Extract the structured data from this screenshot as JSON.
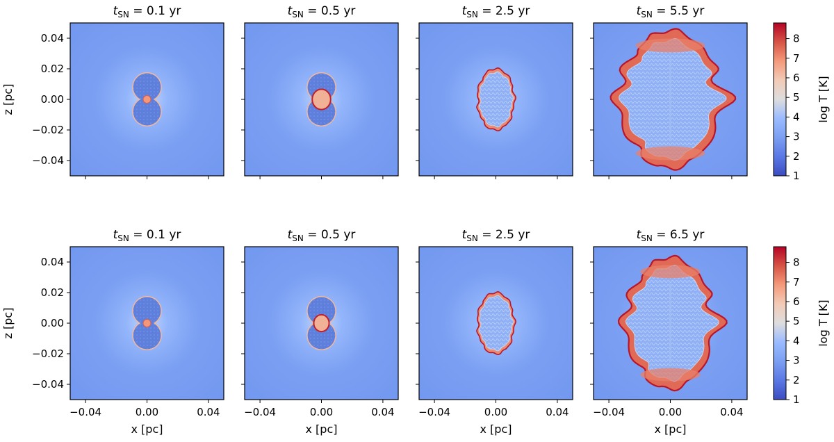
{
  "chart_data": [
    {
      "type": "heatmap",
      "row": 1,
      "title_symbol": "t",
      "title_subscript": "SN",
      "title_rest": " = 0.1 yr",
      "time_yr": 0.1,
      "xlabel": "",
      "ylabel": "z [pc]",
      "xlim": [
        -0.05,
        0.05
      ],
      "ylim": [
        -0.05,
        0.05
      ],
      "xticks": [
        -0.04,
        0.0,
        0.04
      ],
      "yticks": [
        -0.04,
        -0.02,
        0.0,
        0.02,
        0.04
      ],
      "xtick_labels": [
        "−0.04",
        "0.00",
        "0.04"
      ],
      "ytick_labels": [
        "−0.04",
        "−0.02",
        "0.00",
        "0.02",
        "0.04"
      ],
      "structure": {
        "shape": "two-lobed cool bubble",
        "extent_x_pc": 0.009,
        "extent_z_pc": 0.017,
        "core_radius_pc": 0.0025,
        "core_logT": 6.5,
        "interior_logT": 2.0,
        "ambient_logT": 3.2
      }
    },
    {
      "type": "heatmap",
      "row": 1,
      "title_symbol": "t",
      "title_subscript": "SN",
      "title_rest": " = 0.5 yr",
      "time_yr": 0.5,
      "xlim": [
        -0.05,
        0.05
      ],
      "ylim": [
        -0.05,
        0.05
      ],
      "structure": {
        "shape": "two-lobed cool bubble",
        "extent_x_pc": 0.009,
        "extent_z_pc": 0.017,
        "core_radius_pc": 0.006,
        "core_logT": 6.3,
        "interior_logT": 2.0,
        "ambient_logT": 3.2
      }
    },
    {
      "type": "heatmap",
      "row": 1,
      "title_symbol": "t",
      "title_subscript": "SN",
      "title_rest": " = 2.5 yr",
      "time_yr": 2.5,
      "xlim": [
        -0.05,
        0.05
      ],
      "ylim": [
        -0.05,
        0.05
      ],
      "structure": {
        "shape": "turbulent shell",
        "extent_x_pc": 0.012,
        "extent_z_pc": 0.02,
        "shell_logT": 7.5,
        "interior_logT": 3.5,
        "ambient_logT": 3.2
      }
    },
    {
      "type": "heatmap",
      "row": 1,
      "title_symbol": "t",
      "title_subscript": "SN",
      "title_rest": " = 5.5 yr",
      "time_yr": 5.5,
      "xlim": [
        -0.05,
        0.05
      ],
      "ylim": [
        -0.05,
        0.05
      ],
      "structure": {
        "shape": "turbulent shell",
        "extent_x_pc": 0.03,
        "extent_z_pc": 0.045,
        "shell_logT": 7.8,
        "interior_logT": 3.8,
        "ambient_logT": 3.2
      }
    },
    {
      "type": "heatmap",
      "row": 2,
      "title_symbol": "t",
      "title_subscript": "SN",
      "title_rest": " = 0.1 yr",
      "time_yr": 0.1,
      "xlabel": "x [pc]",
      "ylabel": "z [pc]",
      "xlim": [
        -0.05,
        0.05
      ],
      "ylim": [
        -0.05,
        0.05
      ],
      "structure": {
        "shape": "two-lobed cool bubble",
        "extent_x_pc": 0.009,
        "extent_z_pc": 0.017,
        "core_radius_pc": 0.0025,
        "core_logT": 6.5,
        "interior_logT": 2.0,
        "ambient_logT": 3.2
      }
    },
    {
      "type": "heatmap",
      "row": 2,
      "title_symbol": "t",
      "title_subscript": "SN",
      "title_rest": " = 0.5 yr",
      "time_yr": 0.5,
      "xlabel": "x [pc]",
      "xlim": [
        -0.05,
        0.05
      ],
      "ylim": [
        -0.05,
        0.05
      ],
      "structure": {
        "shape": "two-lobed cool bubble",
        "extent_x_pc": 0.009,
        "extent_z_pc": 0.017,
        "core_radius_pc": 0.005,
        "core_logT": 6.4,
        "interior_logT": 2.0,
        "ambient_logT": 3.2
      }
    },
    {
      "type": "heatmap",
      "row": 2,
      "title_symbol": "t",
      "title_subscript": "SN",
      "title_rest": " = 2.5 yr",
      "time_yr": 2.5,
      "xlabel": "x [pc]",
      "xlim": [
        -0.05,
        0.05
      ],
      "ylim": [
        -0.05,
        0.05
      ],
      "structure": {
        "shape": "turbulent shell",
        "extent_x_pc": 0.012,
        "extent_z_pc": 0.02,
        "shell_logT": 7.5,
        "interior_logT": 3.5,
        "ambient_logT": 3.2
      }
    },
    {
      "type": "heatmap",
      "row": 2,
      "title_symbol": "t",
      "title_subscript": "SN",
      "title_rest": " = 6.5 yr",
      "time_yr": 6.5,
      "xlabel": "x [pc]",
      "xlim": [
        -0.05,
        0.05
      ],
      "ylim": [
        -0.05,
        0.05
      ],
      "structure": {
        "shape": "turbulent shell",
        "extent_x_pc": 0.026,
        "extent_z_pc": 0.043,
        "shell_logT": 7.4,
        "interior_logT": 3.8,
        "ambient_logT": 3.2
      }
    }
  ],
  "colorbar": {
    "label": "log T [K]",
    "range": [
      1,
      8.8
    ],
    "ticks": [
      1,
      2,
      3,
      4,
      5,
      6,
      7,
      8
    ],
    "tick_labels": [
      "1",
      "2",
      "3",
      "4",
      "5",
      "6",
      "7",
      "8"
    ],
    "colormap": "coolwarm",
    "colors": [
      "#3b4cc0",
      "#6688ee",
      "#9abbff",
      "#c9d7f0",
      "#dddddd",
      "#f2cbb7",
      "#f49a7b",
      "#d75445",
      "#b40426"
    ]
  }
}
